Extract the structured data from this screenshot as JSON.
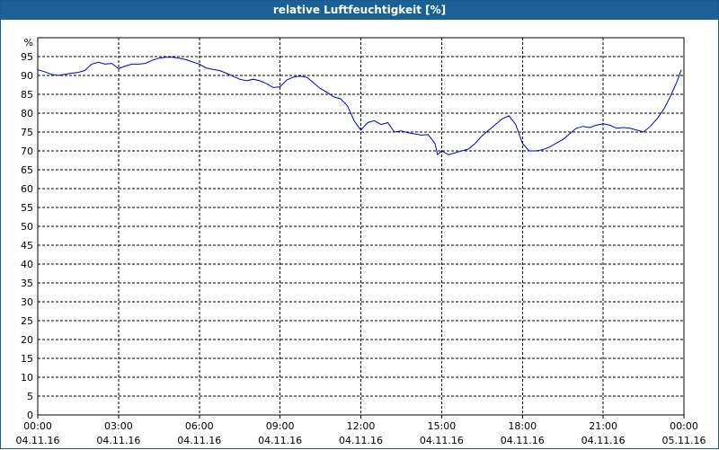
{
  "window": {
    "title": "relative Luftfeuchtigkeit [%]"
  },
  "colors": {
    "titlebar": "#1b6196",
    "series_line": "#0000cc",
    "grid": "#000000"
  },
  "chart_data": {
    "type": "line",
    "title": "relative Luftfeuchtigkeit [%]",
    "y_unit_label": "%",
    "ylim": [
      0,
      100
    ],
    "y_ticks": [
      0,
      5,
      10,
      15,
      20,
      25,
      30,
      35,
      40,
      45,
      50,
      55,
      60,
      65,
      70,
      75,
      80,
      85,
      90,
      95
    ],
    "x_unit": "hours since 04.11.16 00:00",
    "xlim": [
      0,
      24
    ],
    "x_ticks": [
      {
        "x": 0,
        "time": "00:00",
        "date": "04.11.16"
      },
      {
        "x": 3,
        "time": "03:00",
        "date": "04.11.16"
      },
      {
        "x": 6,
        "time": "06:00",
        "date": "04.11.16"
      },
      {
        "x": 9,
        "time": "09:00",
        "date": "04.11.16"
      },
      {
        "x": 12,
        "time": "12:00",
        "date": "04.11.16"
      },
      {
        "x": 15,
        "time": "15:00",
        "date": "04.11.16"
      },
      {
        "x": 18,
        "time": "18:00",
        "date": "04.11.16"
      },
      {
        "x": 21,
        "time": "21:00",
        "date": "04.11.16"
      },
      {
        "x": 24,
        "time": "00:00",
        "date": "05.11.16"
      }
    ],
    "grid": true,
    "grid_style": "dashed",
    "series": [
      {
        "points": [
          [
            0.0,
            91.5
          ],
          [
            0.25,
            91.0
          ],
          [
            0.5,
            90.3
          ],
          [
            0.75,
            90.0
          ],
          [
            1.0,
            90.3
          ],
          [
            1.25,
            90.6
          ],
          [
            1.5,
            90.8
          ],
          [
            1.75,
            91.3
          ],
          [
            2.0,
            93.0
          ],
          [
            2.25,
            93.5
          ],
          [
            2.5,
            93.0
          ],
          [
            2.75,
            93.2
          ],
          [
            3.0,
            91.8
          ],
          [
            3.25,
            92.5
          ],
          [
            3.5,
            93.0
          ],
          [
            3.75,
            93.0
          ],
          [
            4.0,
            93.2
          ],
          [
            4.25,
            94.0
          ],
          [
            4.5,
            94.6
          ],
          [
            4.75,
            94.8
          ],
          [
            5.0,
            94.8
          ],
          [
            5.25,
            94.6
          ],
          [
            5.5,
            94.2
          ],
          [
            5.75,
            93.6
          ],
          [
            6.0,
            93.0
          ],
          [
            6.25,
            92.0
          ],
          [
            6.5,
            91.6
          ],
          [
            6.75,
            91.3
          ],
          [
            7.0,
            90.6
          ],
          [
            7.25,
            89.8
          ],
          [
            7.5,
            89.0
          ],
          [
            7.75,
            88.6
          ],
          [
            8.0,
            89.0
          ],
          [
            8.25,
            88.6
          ],
          [
            8.5,
            87.8
          ],
          [
            8.75,
            86.8
          ],
          [
            9.0,
            87.0
          ],
          [
            9.25,
            88.8
          ],
          [
            9.5,
            89.6
          ],
          [
            9.75,
            89.8
          ],
          [
            10.0,
            89.5
          ],
          [
            10.25,
            88.0
          ],
          [
            10.5,
            86.5
          ],
          [
            10.75,
            85.5
          ],
          [
            11.0,
            84.3
          ],
          [
            11.25,
            83.8
          ],
          [
            11.5,
            82.0
          ],
          [
            11.75,
            78.0
          ],
          [
            12.0,
            75.5
          ],
          [
            12.25,
            77.5
          ],
          [
            12.5,
            78.0
          ],
          [
            12.75,
            77.0
          ],
          [
            13.0,
            77.5
          ],
          [
            13.25,
            75.0
          ],
          [
            13.5,
            75.3
          ],
          [
            13.75,
            74.8
          ],
          [
            14.0,
            74.5
          ],
          [
            14.25,
            74.2
          ],
          [
            14.5,
            74.3
          ],
          [
            14.75,
            72.0
          ],
          [
            14.85,
            69.0
          ],
          [
            15.0,
            70.0
          ],
          [
            15.25,
            69.0
          ],
          [
            15.5,
            69.5
          ],
          [
            15.75,
            70.0
          ],
          [
            16.0,
            70.5
          ],
          [
            16.25,
            72.0
          ],
          [
            16.5,
            74.0
          ],
          [
            16.75,
            75.5
          ],
          [
            17.0,
            77.0
          ],
          [
            17.25,
            78.5
          ],
          [
            17.5,
            79.3
          ],
          [
            17.75,
            77.0
          ],
          [
            18.0,
            72.0
          ],
          [
            18.25,
            70.0
          ],
          [
            18.5,
            70.0
          ],
          [
            18.75,
            70.3
          ],
          [
            19.0,
            71.0
          ],
          [
            19.25,
            72.0
          ],
          [
            19.5,
            73.0
          ],
          [
            19.75,
            74.5
          ],
          [
            20.0,
            76.0
          ],
          [
            20.25,
            76.5
          ],
          [
            20.5,
            76.2
          ],
          [
            20.75,
            76.8
          ],
          [
            21.0,
            77.2
          ],
          [
            21.25,
            76.8
          ],
          [
            21.5,
            76.0
          ],
          [
            21.75,
            76.2
          ],
          [
            22.0,
            76.0
          ],
          [
            22.25,
            75.5
          ],
          [
            22.5,
            75.0
          ],
          [
            22.75,
            76.5
          ],
          [
            23.0,
            78.5
          ],
          [
            23.25,
            81.0
          ],
          [
            23.5,
            84.5
          ],
          [
            23.75,
            88.5
          ],
          [
            23.9,
            91.5
          ]
        ]
      }
    ]
  }
}
